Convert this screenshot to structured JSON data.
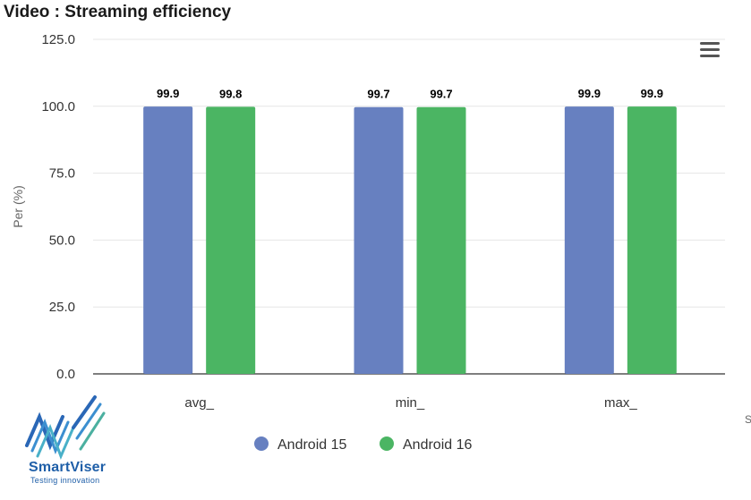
{
  "page": {
    "title": "Video : Streaming efficiency",
    "logo": {
      "name": "SmartViser",
      "tagline": "Testing innovation"
    },
    "edge_char": "S"
  },
  "chart_data": {
    "type": "bar",
    "title": "Video : Streaming efficiency",
    "xlabel": "",
    "ylabel": "Per (%)",
    "categories": [
      "avg_",
      "min_",
      "max_"
    ],
    "ylim": [
      0,
      125
    ],
    "yticks": [
      0,
      25,
      50,
      75,
      100,
      125
    ],
    "ytick_labels": [
      "0.0",
      "25.0",
      "50.0",
      "75.0",
      "100.0",
      "125.0"
    ],
    "grid": true,
    "legend_position": "bottom-center",
    "series": [
      {
        "name": "Android 15",
        "color": "#6780c0",
        "values": [
          99.9,
          99.7,
          99.9
        ],
        "labels": [
          "99.9",
          "99.7",
          "99.9"
        ]
      },
      {
        "name": "Android 16",
        "color": "#4bb563",
        "values": [
          99.8,
          99.7,
          99.9
        ],
        "labels": [
          "99.8",
          "99.7",
          "99.9"
        ]
      }
    ]
  },
  "icons": {
    "menu": "hamburger-menu-icon",
    "logo": "smartviser-logo-icon"
  }
}
